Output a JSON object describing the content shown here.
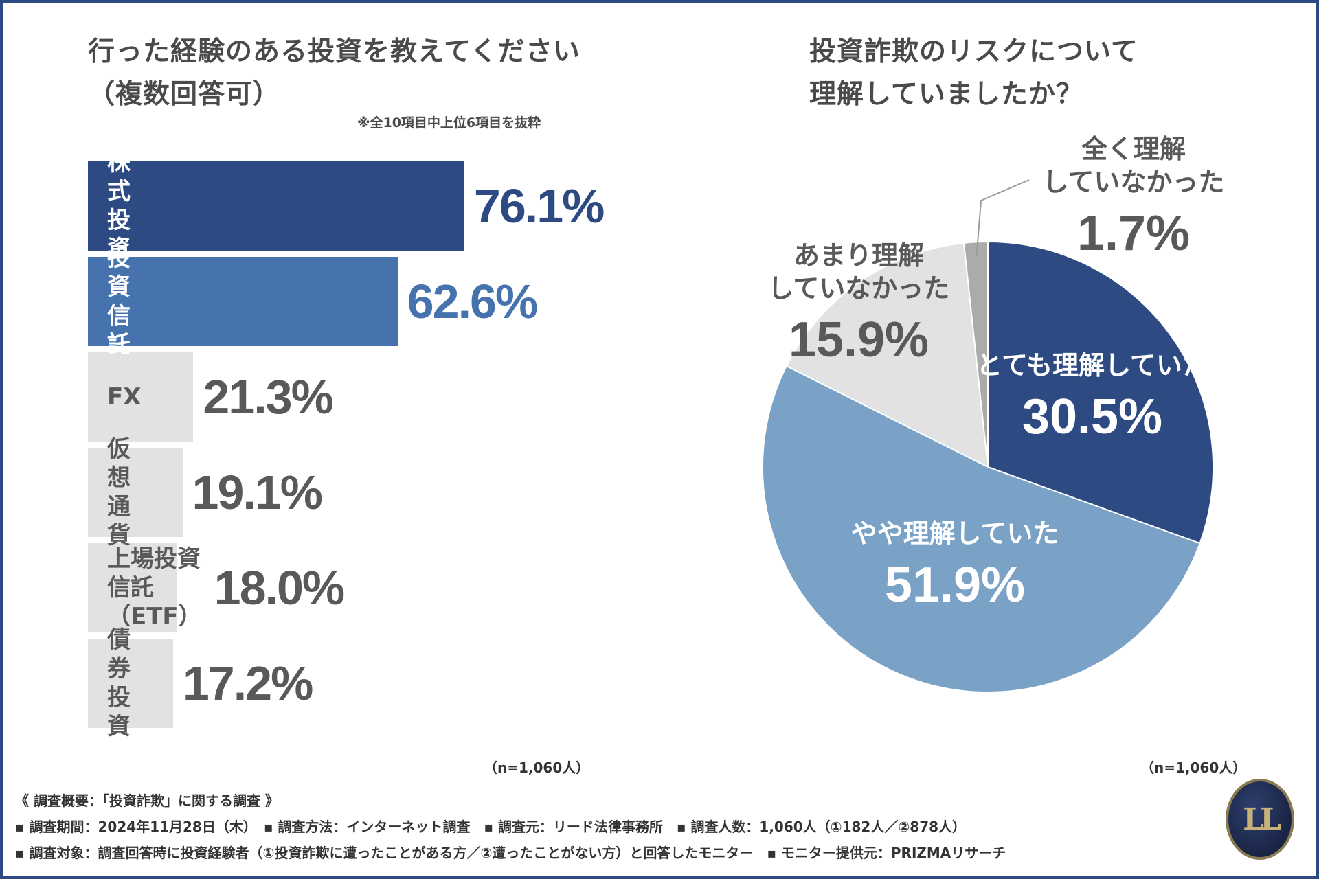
{
  "left_chart": {
    "title_line1": "行った経験のある投資を教えてください",
    "title_line2": "（複数回答可）",
    "note": "※全10項目中上位6項目を抜粋",
    "n_label": "（n=1,060人）"
  },
  "right_chart": {
    "title_line1": "投資詐欺のリスクについて",
    "title_line2": "理解していましたか？",
    "n_label": "（n=1,060人）"
  },
  "chart_data": [
    {
      "type": "bar",
      "orientation": "horizontal",
      "title": "行った経験のある投資を教えてください（複数回答可）",
      "note": "※全10項目中上位6項目を抜粋",
      "n": "n=1,060人",
      "categories": [
        "株式投資",
        "投資信託",
        "FX",
        "仮想通貨",
        "上場投資信託\n（ETF）",
        "債券投資"
      ],
      "values": [
        76.1,
        62.6,
        21.3,
        19.1,
        18.0,
        17.2
      ],
      "value_labels": [
        "76.1%",
        "62.6%",
        "21.3%",
        "19.1%",
        "18.0%",
        "17.2%"
      ],
      "bar_colors": [
        "#2d4b82",
        "#4673ad",
        "#e2e2e2",
        "#e2e2e2",
        "#e2e2e2",
        "#e2e2e2"
      ],
      "label_colors": [
        "#ffffff",
        "#ffffff",
        "#595959",
        "#595959",
        "#595959",
        "#595959"
      ],
      "value_colors": [
        "#2d4b82",
        "#4673ad",
        "#595959",
        "#595959",
        "#595959",
        "#595959"
      ],
      "xlim": [
        0,
        100
      ]
    },
    {
      "type": "pie",
      "title": "投資詐欺のリスクについて理解していましたか？",
      "n": "n=1,060人",
      "slices": [
        {
          "label": "とても理解していた",
          "value": 30.5,
          "value_label": "30.5%",
          "color": "#2d4b82"
        },
        {
          "label": "やや理解していた",
          "value": 51.9,
          "value_label": "51.9%",
          "color": "#7aa1c6"
        },
        {
          "label": "あまり理解していなかった",
          "value": 15.9,
          "value_label": "15.9%",
          "color": "#e2e2e2"
        },
        {
          "label": "全く理解していなかった",
          "value": 1.7,
          "value_label": "1.7%",
          "color": "#ababab"
        }
      ],
      "label_lines": [
        [
          "とても理解していた"
        ],
        [
          "やや理解していた"
        ],
        [
          "あまり理解",
          "していなかった"
        ],
        [
          "全く理解",
          "していなかった"
        ]
      ],
      "start": "12 o'clock",
      "direction": "clockwise"
    }
  ],
  "footer": {
    "line1": "《 調査概要：「投資詐欺」に関する調査 》",
    "line2": "▪ 調査期間：2024年11月28日（木）　▪ 調査方法：インターネット調査　▪ 調査元：リード法律事務所　▪ 調査人数：1,060人（①182人／②878人）",
    "line3": "▪ 調査対象：調査回答時に投資経験者（①投資詐欺に遭ったことがある方／②遭ったことがない方）と回答したモニター　▪ モニター提供元：PRIZMAリサーチ"
  },
  "logo": {
    "text": "LL",
    "icon": "law-firm-logo-icon",
    "color": "#c9b27a"
  }
}
